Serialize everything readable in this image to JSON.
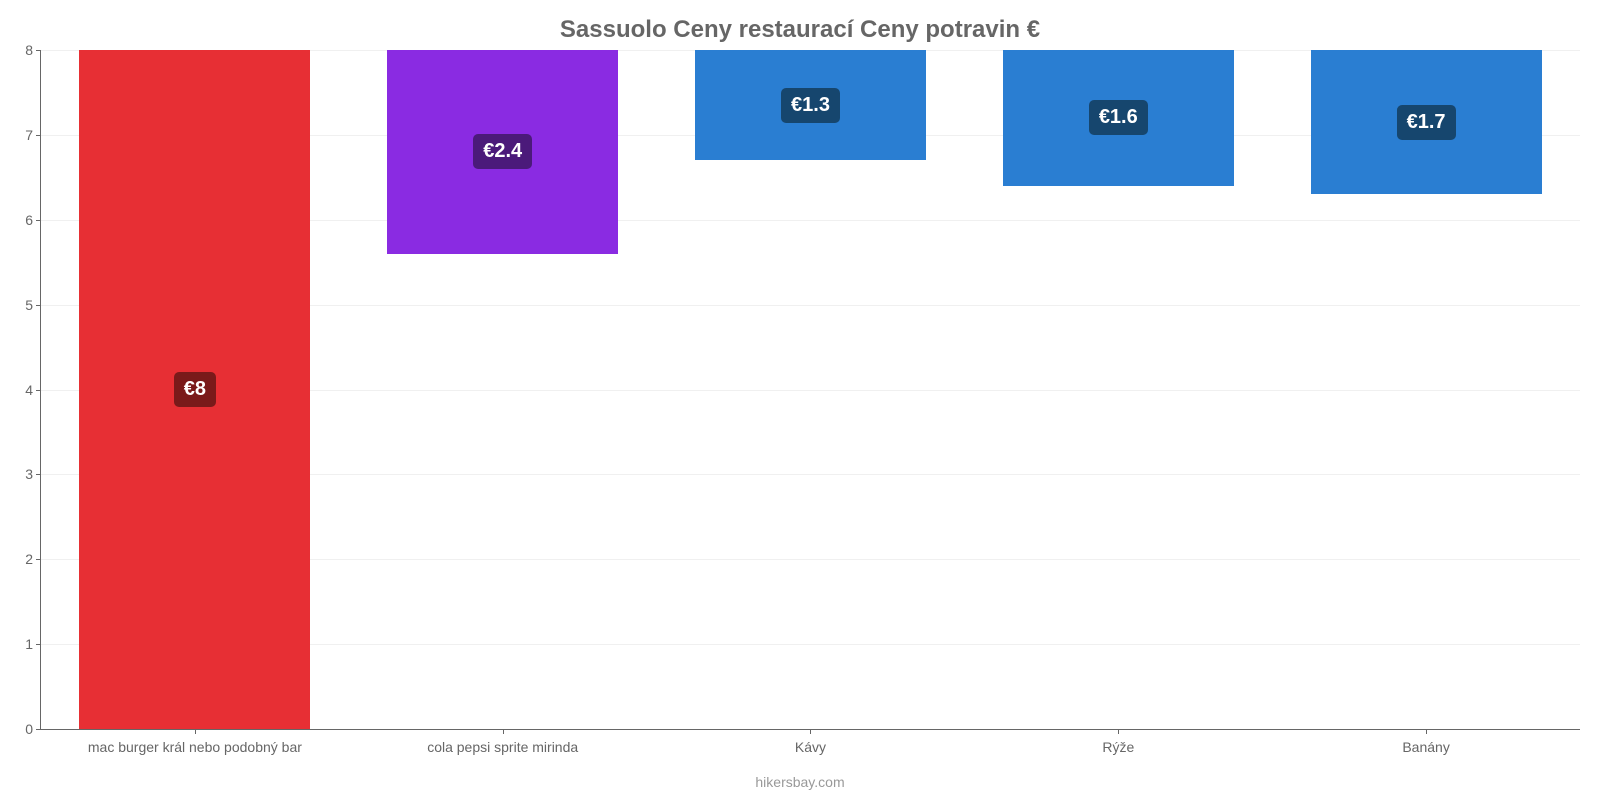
{
  "chart": {
    "type": "bar",
    "title": "Sassuolo Ceny restaurací Ceny potravin €",
    "title_fontsize": 24,
    "title_color": "#666666",
    "background_color": "#ffffff",
    "grid_color": "#f0f0f0",
    "axis_color": "#666666",
    "categories": [
      "mac burger král nebo podobný bar",
      "cola pepsi sprite mirinda",
      "Kávy",
      "Rýže",
      "Banány"
    ],
    "values": [
      8,
      2.4,
      1.3,
      1.6,
      1.7
    ],
    "value_labels": [
      "€8",
      "€2.4",
      "€1.3",
      "€1.6",
      "€1.7"
    ],
    "bar_colors": [
      "#e72f34",
      "#8a2be2",
      "#2a7ed2",
      "#2a7ed2",
      "#2a7ed2"
    ],
    "label_bg_colors": [
      "#7a1a1a",
      "#4b1a7a",
      "#16466e",
      "#16466e",
      "#16466e"
    ],
    "ylim": [
      0,
      8
    ],
    "ytick_step": 1,
    "yticks": [
      0,
      1,
      2,
      3,
      4,
      5,
      6,
      7,
      8
    ],
    "bar_width": 0.75,
    "tick_label_fontsize": 14,
    "tick_label_color": "#666666",
    "value_label_fontsize": 20,
    "value_label_color": "#ffffff",
    "attribution": "hikersbay.com",
    "attribution_color": "#999999",
    "attribution_fontsize": 14
  }
}
